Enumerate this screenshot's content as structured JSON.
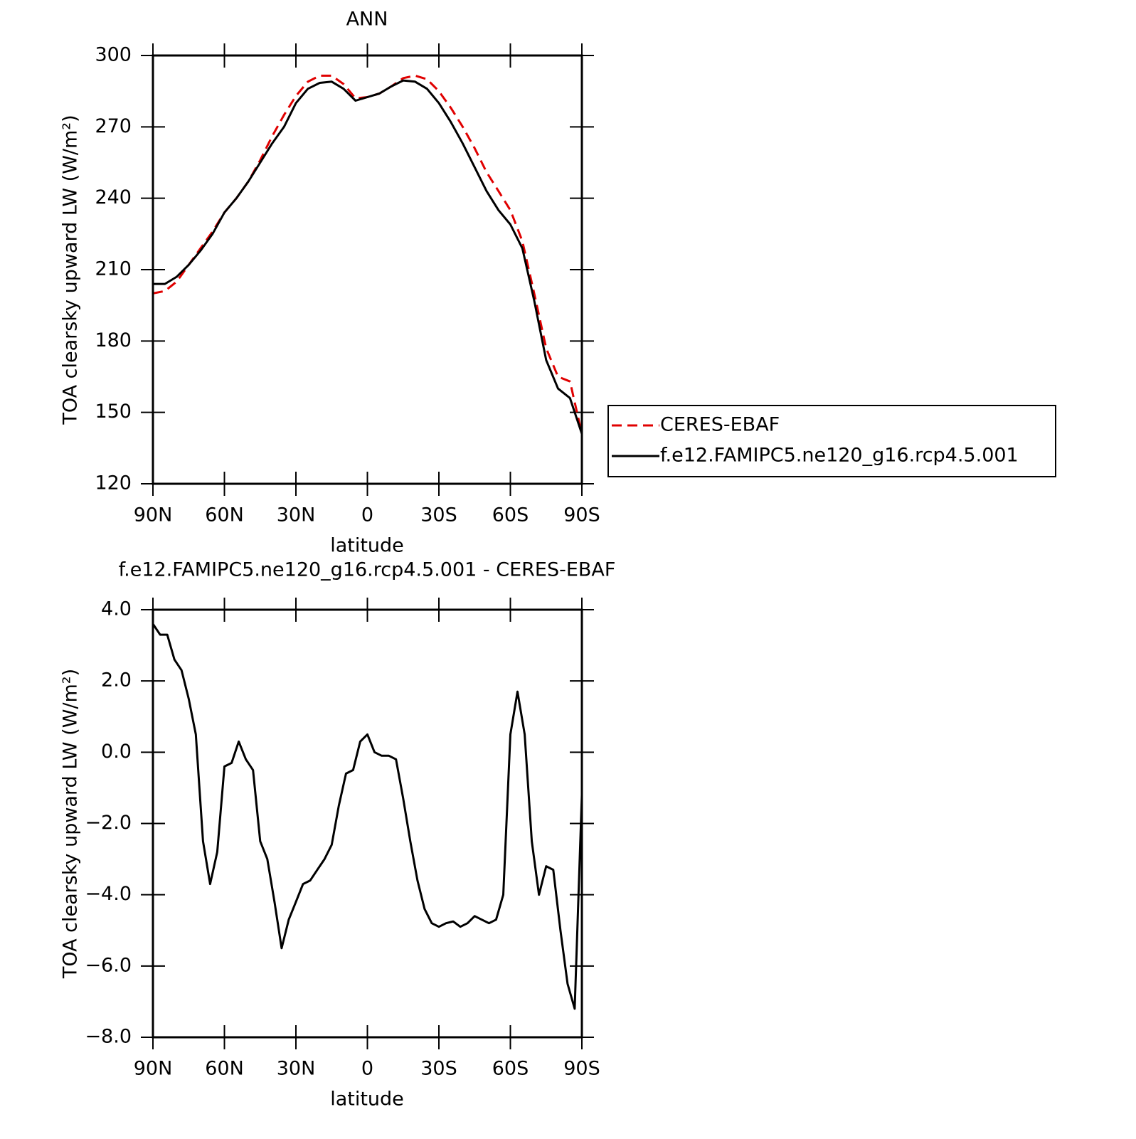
{
  "chart_data": [
    {
      "type": "line",
      "title": "ANN",
      "x_label": "latitude",
      "y_label": "TOA clearsky upward LW (W/m²)",
      "x": [
        90,
        85,
        80,
        75,
        70,
        65,
        60,
        55,
        50,
        45,
        40,
        35,
        30,
        25,
        20,
        15,
        10,
        5,
        0,
        -5,
        -10,
        -15,
        -20,
        -25,
        -30,
        -35,
        -40,
        -45,
        -50,
        -55,
        -60,
        -65,
        -70,
        -75,
        -80,
        -85,
        -90
      ],
      "series": [
        {
          "name": "CERES-EBAF",
          "color": "#e00000",
          "dash": true,
          "values": [
            200,
            201,
            205,
            212,
            219,
            226,
            234,
            240,
            247,
            256,
            266,
            275,
            283,
            289,
            291.5,
            291.5,
            288,
            282,
            282.5,
            284,
            287,
            290.5,
            291.5,
            290,
            285,
            278,
            270,
            261,
            251,
            243,
            235,
            222,
            200,
            177,
            165,
            163,
            141
          ]
        },
        {
          "name": "f.e12.FAMIPC5.ne120_g16.rcp4.5.001",
          "color": "#000000",
          "dash": false,
          "values": [
            204,
            204,
            207,
            212,
            218,
            225,
            234,
            240,
            247,
            255,
            263,
            270,
            280,
            286,
            288.5,
            289,
            286,
            281,
            282.5,
            284,
            287,
            289.5,
            289,
            286,
            280,
            272,
            263,
            253,
            243,
            235,
            229,
            219,
            197,
            172,
            160,
            156,
            141
          ]
        }
      ],
      "xlim": [
        90,
        -90
      ],
      "xticks": [
        {
          "value": 90,
          "label": "90N"
        },
        {
          "value": 60,
          "label": "60N"
        },
        {
          "value": 30,
          "label": "30N"
        },
        0,
        {
          "value": -30,
          "label": "30S"
        },
        {
          "value": -60,
          "label": "60S"
        },
        {
          "value": -90,
          "label": "90S"
        }
      ],
      "ylim": [
        120,
        300
      ],
      "yticks": [
        120,
        150,
        180,
        210,
        240,
        270,
        300
      ],
      "legend": "right"
    },
    {
      "type": "line",
      "title": "f.e12.FAMIPC5.ne120_g16.rcp4.5.001 - CERES-EBAF",
      "x_label": "latitude",
      "y_label": "TOA clearsky upward LW (W/m²)",
      "x": [
        90,
        87,
        84,
        81,
        78,
        75,
        72,
        69,
        66,
        63,
        60,
        57,
        54,
        51,
        48,
        45,
        42,
        39,
        36,
        33,
        30,
        27,
        24,
        21,
        18,
        15,
        12,
        9,
        6,
        3,
        0,
        -3,
        -6,
        -9,
        -12,
        -15,
        -18,
        -21,
        -24,
        -27,
        -30,
        -33,
        -36,
        -39,
        -42,
        -45,
        -48,
        -51,
        -54,
        -57,
        -60,
        -63,
        -66,
        -69,
        -72,
        -75,
        -78,
        -81,
        -84,
        -87,
        -90
      ],
      "series": [
        {
          "color": "#000000",
          "dash": false,
          "values": [
            3.6,
            3.3,
            3.3,
            2.6,
            2.3,
            1.5,
            0.5,
            -2.5,
            -3.7,
            -2.8,
            -0.4,
            -0.3,
            0.3,
            -0.2,
            -0.5,
            -2.5,
            -3.0,
            -4.2,
            -5.5,
            -4.7,
            -4.2,
            -3.7,
            -3.6,
            -3.3,
            -3.0,
            -2.6,
            -1.5,
            -0.6,
            -0.5,
            0.3,
            0.5,
            0.0,
            -0.1,
            -0.1,
            -0.2,
            -1.3,
            -2.5,
            -3.6,
            -4.4,
            -4.8,
            -4.9,
            -4.8,
            -4.75,
            -4.9,
            -4.8,
            -4.6,
            -4.7,
            -4.8,
            -4.7,
            -4.0,
            0.5,
            1.7,
            0.5,
            -2.5,
            -4.0,
            -3.2,
            -3.3,
            -5.0,
            -6.5,
            -7.2,
            -1.2
          ]
        }
      ],
      "xlim": [
        90,
        -90
      ],
      "xticks": [
        {
          "value": 90,
          "label": "90N"
        },
        {
          "value": 60,
          "label": "60N"
        },
        {
          "value": 30,
          "label": "30N"
        },
        0,
        {
          "value": -30,
          "label": "30S"
        },
        {
          "value": -60,
          "label": "60S"
        },
        {
          "value": -90,
          "label": "90S"
        }
      ],
      "ylim": [
        -8,
        4
      ],
      "yticks": [
        {
          "value": -8,
          "label": "−8.0"
        },
        {
          "value": -6,
          "label": "−6.0"
        },
        {
          "value": -4,
          "label": "−4.0"
        },
        {
          "value": -2,
          "label": "−2.0"
        },
        {
          "value": 0,
          "label": "0.0"
        },
        {
          "value": 2,
          "label": "2.0"
        },
        {
          "value": 4,
          "label": "4.0"
        }
      ]
    }
  ]
}
